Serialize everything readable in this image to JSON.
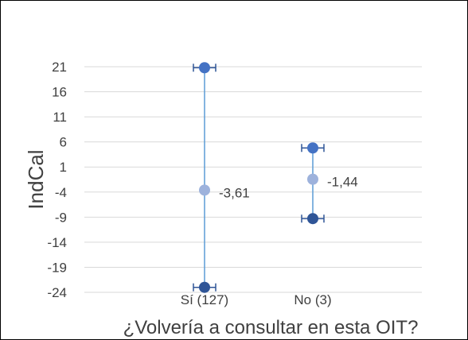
{
  "chart_data": {
    "type": "scatter",
    "xlabel": "¿Volvería a consultar en esta OIT?",
    "ylabel": "IndCal",
    "ylim": [
      -24,
      21
    ],
    "yticks": [
      "21",
      "16",
      "11",
      "6",
      "1",
      "-4",
      "-9",
      "-14",
      "-19",
      "-24"
    ],
    "grid": true,
    "categories": [
      "Sí (127)",
      "No (3)"
    ],
    "series": [
      {
        "values": [
          20.8,
          4.8
        ]
      },
      {
        "values": [
          -3.61,
          -1.44
        ]
      },
      {
        "values": [
          -23.0,
          -9.3
        ]
      }
    ],
    "labels": [
      "-3,61",
      "-1,44"
    ],
    "colors": {
      "upper": "#4472C4",
      "mean": "#9DB2DC",
      "lower": "#2F5597",
      "line": "#5B9BD5",
      "grid": "#D9D9D9"
    }
  }
}
